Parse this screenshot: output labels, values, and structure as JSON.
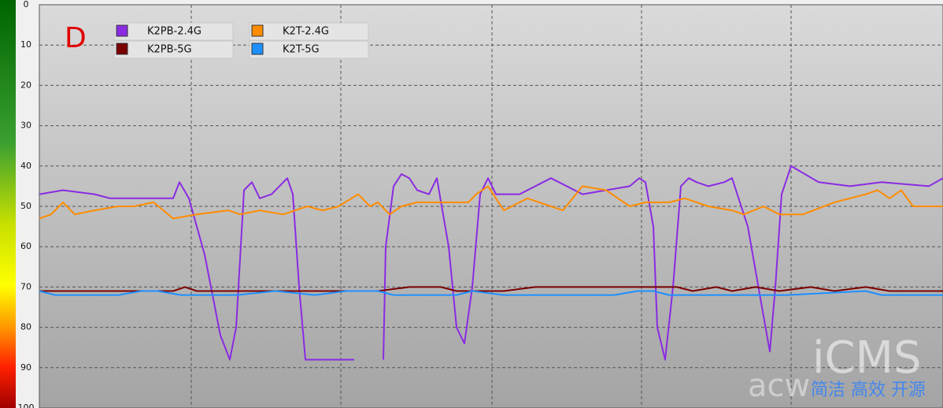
{
  "chart_data": {
    "type": "line",
    "annotation": "D",
    "watermark": [
      "iCMS",
      "简洁 高效 开源",
      "acw"
    ],
    "ylim": [
      0,
      100
    ],
    "y_inverted": true,
    "yticks": [
      0,
      10,
      20,
      30,
      40,
      50,
      60,
      70,
      80,
      90,
      100
    ],
    "grid": true,
    "xlim": [
      0,
      1148
    ],
    "series": [
      {
        "name": "K2PB-2.4G",
        "color": "#8a2be2",
        "x": [
          0,
          30,
          70,
          90,
          130,
          170,
          178,
          190,
          210,
          230,
          242,
          250,
          260,
          270,
          280,
          295,
          305,
          315,
          322,
          330,
          338,
          400,
          434,
          437,
          440,
          450,
          460,
          470,
          480,
          495,
          505,
          520,
          530,
          540,
          550,
          560,
          570,
          580,
          610,
          650,
          690,
          720,
          750,
          762,
          770,
          780,
          785,
          795,
          805,
          815,
          825,
          835,
          850,
          870,
          880,
          900,
          918,
          928,
          935,
          943,
          955,
          990,
          1030,
          1070,
          1130,
          1148
        ],
        "values": [
          47,
          46,
          47,
          48,
          48,
          48,
          44,
          48,
          62,
          82,
          88,
          80,
          46,
          44,
          48,
          47,
          45,
          43,
          47,
          70,
          88,
          88,
          null,
          88,
          60,
          45,
          42,
          43,
          46,
          47,
          43,
          60,
          80,
          84,
          70,
          47,
          43,
          47,
          47,
          43,
          47,
          46,
          45,
          43,
          44,
          55,
          80,
          88,
          70,
          45,
          43,
          44,
          45,
          44,
          43,
          55,
          75,
          86,
          70,
          47,
          40,
          44,
          45,
          44,
          45,
          43
        ]
      },
      {
        "name": "K2PB-5G",
        "color": "#7a0000",
        "x": [
          0,
          170,
          185,
          200,
          430,
          470,
          510,
          530,
          550,
          590,
          630,
          810,
          830,
          860,
          880,
          910,
          940,
          980,
          1010,
          1050,
          1080,
          1148
        ],
        "values": [
          71,
          71,
          70,
          71,
          71,
          70,
          70,
          71,
          71,
          71,
          70,
          70,
          71,
          70,
          71,
          70,
          71,
          70,
          71,
          70,
          71,
          71
        ]
      },
      {
        "name": "K2T-2.4G",
        "color": "#ff8c00",
        "x": [
          0,
          15,
          30,
          45,
          70,
          100,
          120,
          145,
          170,
          200,
          240,
          255,
          280,
          310,
          340,
          360,
          380,
          405,
          420,
          430,
          445,
          460,
          480,
          510,
          545,
          555,
          570,
          590,
          620,
          650,
          665,
          690,
          720,
          750,
          770,
          800,
          820,
          850,
          880,
          895,
          920,
          940,
          970,
          1010,
          1050,
          1065,
          1080,
          1095,
          1110,
          1148
        ],
        "values": [
          53,
          52,
          49,
          52,
          51,
          50,
          50,
          49,
          53,
          52,
          51,
          52,
          51,
          52,
          50,
          51,
          50,
          47,
          50,
          49,
          52,
          50,
          49,
          49,
          49,
          47,
          45,
          51,
          48,
          50,
          51,
          45,
          46,
          50,
          49,
          49,
          48,
          50,
          51,
          52,
          50,
          52,
          52,
          49,
          47,
          46,
          48,
          46,
          50,
          50
        ]
      },
      {
        "name": "K2T-5G",
        "color": "#1e90ff",
        "x": [
          0,
          20,
          100,
          130,
          150,
          180,
          220,
          250,
          300,
          350,
          390,
          430,
          450,
          530,
          550,
          590,
          730,
          760,
          780,
          800,
          950,
          1050,
          1070,
          1148
        ],
        "values": [
          71,
          72,
          72,
          71,
          71,
          72,
          72,
          72,
          71,
          72,
          71,
          71,
          72,
          72,
          71,
          72,
          72,
          71,
          71,
          72,
          72,
          71,
          72,
          72
        ]
      }
    ]
  }
}
